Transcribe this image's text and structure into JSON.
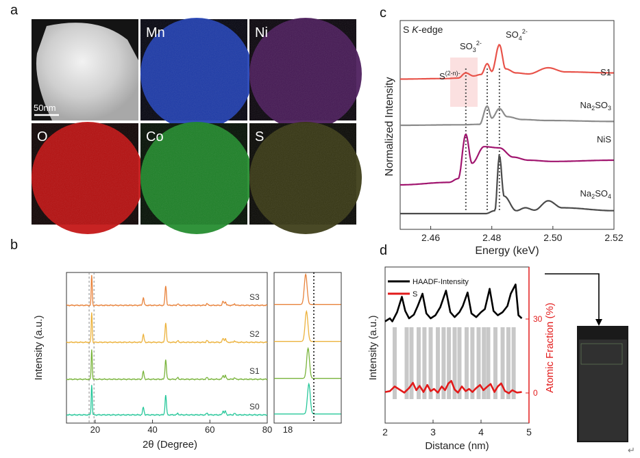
{
  "panel_labels": {
    "a": "a",
    "b": "b",
    "c": "c",
    "d": "d"
  },
  "panel_a": {
    "scale_bar": "50nm",
    "maps": [
      {
        "label": "",
        "color": "#d8d8d8",
        "bg": "#141414"
      },
      {
        "label": "Mn",
        "color": "#1f3fb4",
        "bg": "#050510"
      },
      {
        "label": "Ni",
        "color": "#4a1a5a",
        "bg": "#0a050c"
      },
      {
        "label": "O",
        "color": "#c21010",
        "bg": "#100404"
      },
      {
        "label": "Co",
        "color": "#1f8a2a",
        "bg": "#041004"
      },
      {
        "label": "S",
        "color": "#3a3a14",
        "bg": "#090905"
      }
    ]
  },
  "chart_data": [
    {
      "panel": "b",
      "type": "line",
      "xlabel": "2θ (Degree)",
      "ylabel": "Intensity (a.u.)",
      "xlim": [
        10,
        80
      ],
      "xticks": [
        "20",
        "40",
        "60",
        "80"
      ],
      "zoom_xtick": "18",
      "reference_lines_x": [
        17.9,
        19.6
      ],
      "peaks": [
        {
          "x": 18.8,
          "h": 1.0
        },
        {
          "x": 36.8,
          "h": 0.25
        },
        {
          "x": 44.6,
          "h": 0.65
        },
        {
          "x": 48.8,
          "h": 0.05
        },
        {
          "x": 59.0,
          "h": 0.06
        },
        {
          "x": 64.6,
          "h": 0.13
        },
        {
          "x": 65.4,
          "h": 0.12
        },
        {
          "x": 68.6,
          "h": 0.05
        }
      ],
      "series": [
        {
          "name": "S3",
          "color": "#e8823a",
          "zoom_peak": 18.7
        },
        {
          "name": "S2",
          "color": "#ecb23c",
          "zoom_peak": 18.72
        },
        {
          "name": "S1",
          "color": "#79b43b",
          "zoom_peak": 18.76
        },
        {
          "name": "S0",
          "color": "#27c79a",
          "zoom_peak": 18.78
        }
      ]
    },
    {
      "panel": "c",
      "type": "line",
      "title": "S K-edge",
      "xlabel": "Energy (keV)",
      "ylabel": "Normalized Intensity",
      "xlim": [
        2.45,
        2.52
      ],
      "xticks": [
        "2.46",
        "2.48",
        "2.50",
        "2.52"
      ],
      "annotations": [
        {
          "base": "S",
          "sup": "(2-n)-",
          "x": 2.4715
        },
        {
          "base": "SO",
          "sub": "3",
          "sup": "2-",
          "x": 2.4785
        },
        {
          "base": "SO",
          "sub": "4",
          "sup": "2-",
          "x": 2.4825
        }
      ],
      "series": [
        {
          "name": "S1",
          "name_sub": "",
          "name_tail": "",
          "color": "#e8534a",
          "points": [
            [
              2.45,
              0.3
            ],
            [
              2.465,
              0.31
            ],
            [
              2.469,
              0.32
            ],
            [
              2.4715,
              0.42
            ],
            [
              2.474,
              0.36
            ],
            [
              2.4765,
              0.39
            ],
            [
              2.4785,
              0.6
            ],
            [
              2.48,
              0.45
            ],
            [
              2.4825,
              0.97
            ],
            [
              2.4845,
              0.5
            ],
            [
              2.488,
              0.42
            ],
            [
              2.492,
              0.4
            ],
            [
              2.4985,
              0.52
            ],
            [
              2.504,
              0.44
            ],
            [
              2.52,
              0.42
            ]
          ]
        },
        {
          "name": "Na",
          "name_sub": "2",
          "name_tail": "SO3",
          "color": "#8a8a8a",
          "points": [
            [
              2.45,
              0.0
            ],
            [
              2.47,
              0.01
            ],
            [
              2.476,
              0.02
            ],
            [
              2.4785,
              0.4
            ],
            [
              2.48,
              0.15
            ],
            [
              2.4825,
              0.35
            ],
            [
              2.485,
              0.18
            ],
            [
              2.49,
              0.12
            ],
            [
              2.498,
              0.1
            ],
            [
              2.52,
              0.08
            ]
          ]
        },
        {
          "name": "NiS",
          "name_sub": "",
          "name_tail": "",
          "color": "#a0146e",
          "points": [
            [
              2.45,
              0.0
            ],
            [
              2.466,
              0.04
            ],
            [
              2.469,
              0.1
            ],
            [
              2.4715,
              0.82
            ],
            [
              2.4735,
              0.35
            ],
            [
              2.4775,
              0.62
            ],
            [
              2.4825,
              0.6
            ],
            [
              2.487,
              0.45
            ],
            [
              2.492,
              0.4
            ],
            [
              2.5,
              0.38
            ],
            [
              2.52,
              0.4
            ]
          ]
        },
        {
          "name": "Na",
          "name_sub": "2",
          "name_tail": "SO4",
          "color": "#4a4a4a",
          "points": [
            [
              2.45,
              0.0
            ],
            [
              2.478,
              0.0
            ],
            [
              2.481,
              0.05
            ],
            [
              2.4825,
              1.0
            ],
            [
              2.484,
              0.3
            ],
            [
              2.488,
              0.05
            ],
            [
              2.491,
              0.1
            ],
            [
              2.494,
              0.06
            ],
            [
              2.4985,
              0.22
            ],
            [
              2.503,
              0.1
            ],
            [
              2.52,
              0.05
            ]
          ]
        }
      ]
    },
    {
      "panel": "d",
      "type": "line",
      "xlabel": "Distance (nm)",
      "ylabel": "Intensity (a.u.)",
      "y2label": "Atomic Fraction (%)",
      "xlim": [
        2,
        5
      ],
      "xticks": [
        "2",
        "3",
        "4",
        "5"
      ],
      "y2ticks": [
        "30",
        "0"
      ],
      "series": [
        {
          "name": "HAADF-Intensity",
          "color": "#000000",
          "points": [
            [
              2.0,
              0.45
            ],
            [
              2.1,
              0.5
            ],
            [
              2.15,
              0.45
            ],
            [
              2.25,
              0.6
            ],
            [
              2.35,
              0.85
            ],
            [
              2.42,
              0.62
            ],
            [
              2.5,
              0.5
            ],
            [
              2.6,
              0.56
            ],
            [
              2.68,
              0.7
            ],
            [
              2.78,
              0.9
            ],
            [
              2.86,
              0.58
            ],
            [
              2.95,
              0.5
            ],
            [
              3.05,
              0.55
            ],
            [
              3.15,
              0.68
            ],
            [
              3.27,
              0.95
            ],
            [
              3.36,
              0.6
            ],
            [
              3.45,
              0.52
            ],
            [
              3.55,
              0.6
            ],
            [
              3.62,
              0.7
            ],
            [
              3.72,
              0.92
            ],
            [
              3.8,
              0.58
            ],
            [
              3.9,
              0.52
            ],
            [
              4.0,
              0.6
            ],
            [
              4.08,
              0.65
            ],
            [
              4.18,
              0.98
            ],
            [
              4.26,
              0.62
            ],
            [
              4.35,
              0.55
            ],
            [
              4.45,
              0.6
            ],
            [
              4.55,
              0.7
            ],
            [
              4.62,
              0.9
            ],
            [
              4.72,
              1.05
            ],
            [
              4.78,
              0.55
            ],
            [
              4.85,
              0.5
            ]
          ]
        },
        {
          "name": "S",
          "color": "#e21a1a",
          "points": [
            [
              2.0,
              0.12
            ],
            [
              2.1,
              0.15
            ],
            [
              2.2,
              0.3
            ],
            [
              2.3,
              0.2
            ],
            [
              2.4,
              0.1
            ],
            [
              2.5,
              0.25
            ],
            [
              2.58,
              0.42
            ],
            [
              2.65,
              0.18
            ],
            [
              2.72,
              0.32
            ],
            [
              2.8,
              0.12
            ],
            [
              2.88,
              0.35
            ],
            [
              2.95,
              0.15
            ],
            [
              3.02,
              0.22
            ],
            [
              3.1,
              0.1
            ],
            [
              3.18,
              0.3
            ],
            [
              3.25,
              0.18
            ],
            [
              3.32,
              0.4
            ],
            [
              3.38,
              0.48
            ],
            [
              3.45,
              0.2
            ],
            [
              3.52,
              0.1
            ],
            [
              3.6,
              0.3
            ],
            [
              3.68,
              0.15
            ],
            [
              3.75,
              0.22
            ],
            [
              3.82,
              0.12
            ],
            [
              3.9,
              0.25
            ],
            [
              3.98,
              0.35
            ],
            [
              4.05,
              0.18
            ],
            [
              4.12,
              0.28
            ],
            [
              4.2,
              0.38
            ],
            [
              4.28,
              0.12
            ],
            [
              4.35,
              0.3
            ],
            [
              4.42,
              0.4
            ],
            [
              4.5,
              0.15
            ],
            [
              4.58,
              0.08
            ],
            [
              4.65,
              0.18
            ],
            [
              4.75,
              0.1
            ],
            [
              4.85,
              0.12
            ]
          ]
        }
      ],
      "gray_bands_x": [
        2.2,
        2.45,
        2.55,
        2.7,
        2.82,
        2.95,
        3.1,
        3.22,
        3.33,
        3.45,
        3.55,
        3.7,
        3.82,
        3.95,
        4.06,
        4.15,
        4.3,
        4.45,
        4.57,
        4.68
      ]
    }
  ]
}
